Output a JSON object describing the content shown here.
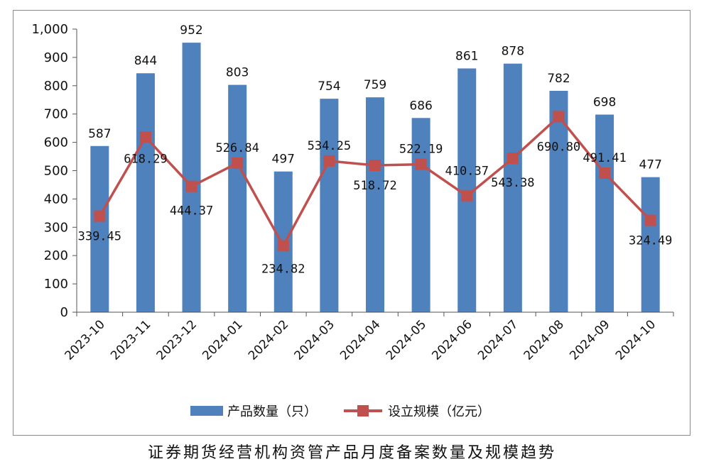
{
  "chart_data": {
    "type": "bar",
    "categories": [
      "2023-10",
      "2023-11",
      "2023-12",
      "2024-01",
      "2024-02",
      "2024-03",
      "2024-04",
      "2024-05",
      "2024-06",
      "2024-07",
      "2024-08",
      "2024-09",
      "2024-10"
    ],
    "series": [
      {
        "name": "产品数量（只）",
        "type": "bar",
        "values": [
          587,
          844,
          952,
          803,
          497,
          754,
          759,
          686,
          861,
          878,
          782,
          698,
          477
        ],
        "labels": [
          "587",
          "844",
          "952",
          "803",
          "497",
          "754",
          "759",
          "686",
          "861",
          "878",
          "782",
          "698",
          "477"
        ],
        "color": "#4f81bd"
      },
      {
        "name": "设立规模（亿元）",
        "type": "line",
        "values": [
          339.45,
          618.29,
          444.37,
          526.84,
          234.82,
          534.25,
          518.72,
          522.19,
          410.37,
          543.38,
          690.8,
          491.41,
          324.49
        ],
        "labels": [
          "339.45",
          "618.29",
          "444.37",
          "526.84",
          "234.82",
          "534.25",
          "518.72",
          "522.19",
          "410.37",
          "543.38",
          "690.80",
          "491.41",
          "324.49"
        ],
        "color": "#c0504d"
      }
    ],
    "ylim": [
      0,
      1000
    ],
    "yticks": [
      0,
      100,
      200,
      300,
      400,
      500,
      600,
      700,
      800,
      900,
      1000
    ],
    "ytick_labels": [
      "0",
      "100",
      "200",
      "300",
      "400",
      "500",
      "600",
      "700",
      "800",
      "900",
      "1,000"
    ],
    "grid": false,
    "legend": "bottom",
    "title": "证券期货经营机构资管产品月度备案数量及规模趋势"
  }
}
